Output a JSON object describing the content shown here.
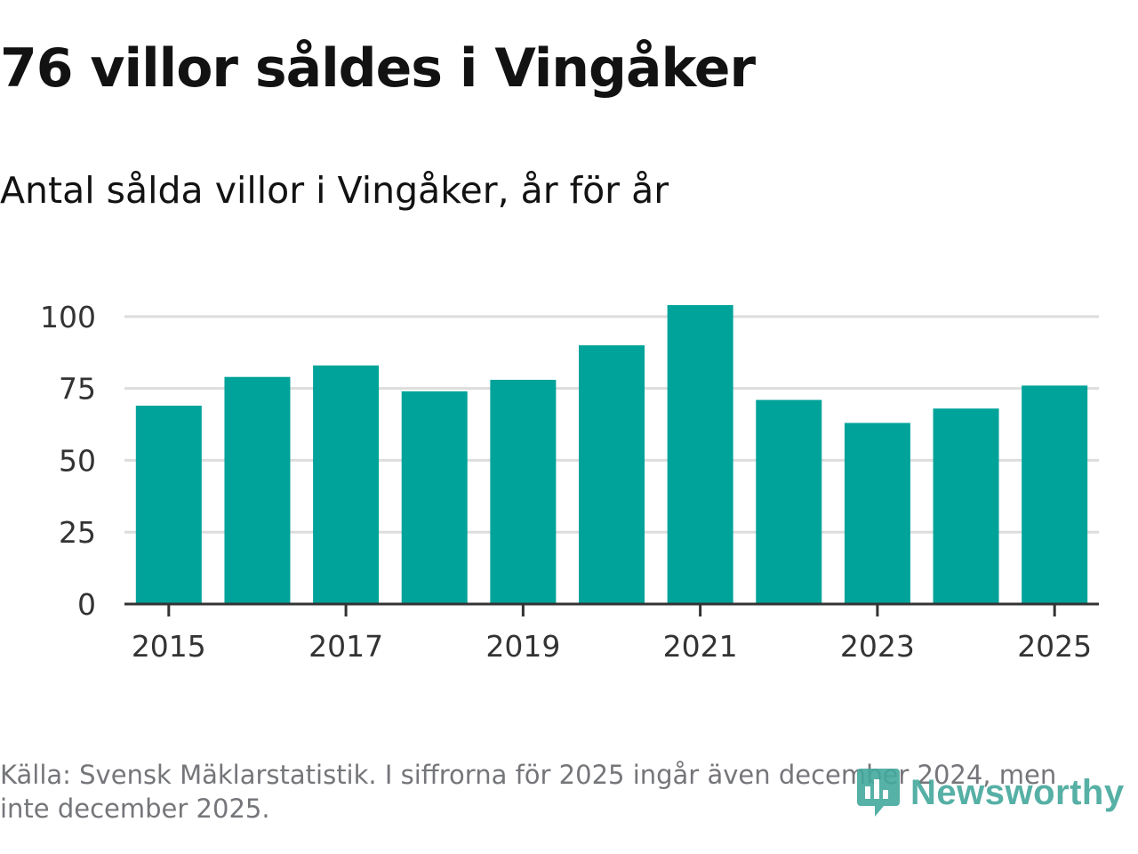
{
  "header": {
    "title": "76 villor såldes i Vingåker",
    "subtitle": "Antal sålda villor i Vingåker, år för år"
  },
  "footer": {
    "source": "Källa: Svensk Mäklarstatistik. I siffrorna för 2025 ingår även december 2024, men inte december 2025.",
    "logo_text": "Newsworthy"
  },
  "colors": {
    "bar": "#00a39a",
    "grid": "#dddddd",
    "axis": "#333333",
    "tick_text": "#333333",
    "logo": "#44a89c"
  },
  "chart_data": {
    "type": "bar",
    "title": "76 villor såldes i Vingåker",
    "subtitle": "Antal sålda villor i Vingåker, år för år",
    "categories": [
      "2015",
      "2016",
      "2017",
      "2018",
      "2019",
      "2020",
      "2021",
      "2022",
      "2023",
      "2024",
      "2025"
    ],
    "values": [
      69,
      79,
      83,
      74,
      78,
      90,
      104,
      71,
      63,
      68,
      76
    ],
    "x_tick_labels": [
      "2015",
      "2017",
      "2019",
      "2021",
      "2023",
      "2025"
    ],
    "y_ticks": [
      0,
      25,
      50,
      75,
      100
    ],
    "xlabel": "",
    "ylabel": "",
    "ylim": [
      0,
      108
    ],
    "grid": true
  }
}
